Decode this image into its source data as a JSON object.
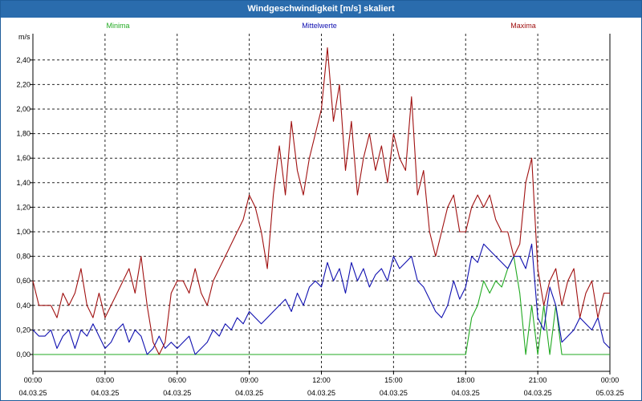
{
  "window": {
    "title": "Windgeschwindigkeit [m/s] skaliert"
  },
  "legend": {
    "min_label": "Minima",
    "mean_label": "Mittelwerte",
    "max_label": "Maxima"
  },
  "colors": {
    "min": "#22aa22",
    "mean": "#1010b0",
    "max": "#a01010",
    "grid": "#000000",
    "title_bar": "#2a6cad"
  },
  "chart_data": {
    "type": "line",
    "title": "Windgeschwindigkeit [m/s] skaliert",
    "ylabel": "m/s",
    "ylim": [
      0,
      2.6
    ],
    "xlim": [
      "04.03.25 00:00",
      "05.03.25 00:00"
    ],
    "grid": true,
    "legend_position": "top",
    "y_ticks": [
      "0,00",
      "0,20",
      "0,40",
      "0,60",
      "0,80",
      "1,00",
      "1,20",
      "1,40",
      "1,60",
      "1,80",
      "2,00",
      "2,20",
      "2,40"
    ],
    "x_ticks": [
      {
        "time": "00:00",
        "date": "04.03.25"
      },
      {
        "time": "03:00",
        "date": "04.03.25"
      },
      {
        "time": "06:00",
        "date": "04.03.25"
      },
      {
        "time": "09:00",
        "date": "04.03.25"
      },
      {
        "time": "12:00",
        "date": "04.03.25"
      },
      {
        "time": "15:00",
        "date": "04.03.25"
      },
      {
        "time": "18:00",
        "date": "04.03.25"
      },
      {
        "time": "21:00",
        "date": "04.03.25"
      },
      {
        "time": "00:00",
        "date": "05.03.25"
      }
    ],
    "series": [
      {
        "name": "Maxima",
        "x_hours": [
          0,
          0.25,
          0.5,
          0.75,
          1,
          1.25,
          1.5,
          1.75,
          2,
          2.25,
          2.5,
          2.75,
          3,
          3.25,
          3.5,
          3.75,
          4,
          4.25,
          4.5,
          4.75,
          5,
          5.25,
          5.5,
          5.75,
          6,
          6.25,
          6.5,
          6.75,
          7,
          7.25,
          7.5,
          7.75,
          8,
          8.25,
          8.5,
          8.75,
          9,
          9.25,
          9.5,
          9.75,
          10,
          10.25,
          10.5,
          10.75,
          11,
          11.25,
          11.5,
          11.75,
          12,
          12.25,
          12.5,
          12.75,
          13,
          13.25,
          13.5,
          13.75,
          14,
          14.25,
          14.5,
          14.75,
          15,
          15.25,
          15.5,
          15.75,
          16,
          16.25,
          16.5,
          16.75,
          17,
          17.25,
          17.5,
          17.75,
          18,
          18.25,
          18.5,
          18.75,
          19,
          19.25,
          19.5,
          19.75,
          20,
          20.25,
          20.5,
          20.75,
          21,
          21.25,
          21.5,
          21.75,
          22,
          22.25,
          22.5,
          22.75,
          23,
          23.25,
          23.5,
          23.75,
          24
        ],
        "values": [
          0.6,
          0.4,
          0.4,
          0.4,
          0.3,
          0.5,
          0.4,
          0.5,
          0.7,
          0.4,
          0.3,
          0.5,
          0.3,
          0.4,
          0.5,
          0.6,
          0.7,
          0.5,
          0.8,
          0.4,
          0.1,
          0.0,
          0.1,
          0.5,
          0.6,
          0.6,
          0.5,
          0.7,
          0.5,
          0.4,
          0.6,
          0.7,
          0.8,
          0.9,
          1.0,
          1.1,
          1.3,
          1.2,
          1.0,
          0.7,
          1.3,
          1.7,
          1.3,
          1.9,
          1.5,
          1.3,
          1.6,
          1.8,
          2.0,
          2.5,
          1.9,
          2.2,
          1.5,
          1.9,
          1.3,
          1.6,
          1.8,
          1.5,
          1.7,
          1.4,
          1.8,
          1.6,
          1.5,
          2.1,
          1.3,
          1.5,
          1.0,
          0.8,
          1.0,
          1.2,
          1.3,
          1.0,
          1.0,
          1.2,
          1.3,
          1.2,
          1.3,
          1.1,
          1.0,
          1.0,
          0.8,
          0.9,
          1.4,
          1.6,
          0.7,
          0.4,
          0.6,
          0.7,
          0.4,
          0.6,
          0.7,
          0.3,
          0.5,
          0.6,
          0.3,
          0.5,
          0.5
        ]
      },
      {
        "name": "Mittelwerte",
        "x_hours": [
          0,
          0.25,
          0.5,
          0.75,
          1,
          1.25,
          1.5,
          1.75,
          2,
          2.25,
          2.5,
          2.75,
          3,
          3.25,
          3.5,
          3.75,
          4,
          4.25,
          4.5,
          4.75,
          5,
          5.25,
          5.5,
          5.75,
          6,
          6.25,
          6.5,
          6.75,
          7,
          7.25,
          7.5,
          7.75,
          8,
          8.25,
          8.5,
          8.75,
          9,
          9.25,
          9.5,
          9.75,
          10,
          10.25,
          10.5,
          10.75,
          11,
          11.25,
          11.5,
          11.75,
          12,
          12.25,
          12.5,
          12.75,
          13,
          13.25,
          13.5,
          13.75,
          14,
          14.25,
          14.5,
          14.75,
          15,
          15.25,
          15.5,
          15.75,
          16,
          16.25,
          16.5,
          16.75,
          17,
          17.25,
          17.5,
          17.75,
          18,
          18.25,
          18.5,
          18.75,
          19,
          19.25,
          19.5,
          19.75,
          20,
          20.25,
          20.5,
          20.75,
          21,
          21.25,
          21.5,
          21.75,
          22,
          22.25,
          22.5,
          22.75,
          23,
          23.25,
          23.5,
          23.75,
          24
        ],
        "values": [
          0.2,
          0.15,
          0.15,
          0.2,
          0.05,
          0.15,
          0.2,
          0.05,
          0.2,
          0.15,
          0.25,
          0.15,
          0.05,
          0.1,
          0.2,
          0.25,
          0.1,
          0.2,
          0.15,
          0.0,
          0.05,
          0.15,
          0.05,
          0.1,
          0.05,
          0.1,
          0.15,
          0.0,
          0.05,
          0.1,
          0.2,
          0.15,
          0.25,
          0.2,
          0.3,
          0.25,
          0.35,
          0.3,
          0.25,
          0.3,
          0.35,
          0.4,
          0.45,
          0.35,
          0.5,
          0.4,
          0.55,
          0.6,
          0.55,
          0.75,
          0.6,
          0.7,
          0.5,
          0.75,
          0.6,
          0.7,
          0.55,
          0.65,
          0.7,
          0.6,
          0.8,
          0.7,
          0.75,
          0.8,
          0.6,
          0.55,
          0.45,
          0.35,
          0.3,
          0.4,
          0.6,
          0.45,
          0.55,
          0.8,
          0.75,
          0.9,
          0.85,
          0.8,
          0.75,
          0.7,
          0.8,
          0.8,
          0.7,
          0.9,
          0.3,
          0.2,
          0.55,
          0.4,
          0.1,
          0.15,
          0.2,
          0.3,
          0.25,
          0.2,
          0.3,
          0.1,
          0.05
        ]
      },
      {
        "name": "Minima",
        "x_hours": [
          0,
          18,
          18.25,
          18.5,
          18.75,
          19,
          19.25,
          19.5,
          19.75,
          20,
          20.25,
          20.5,
          20.75,
          21,
          21.25,
          21.5,
          21.75,
          22,
          22.25,
          24
        ],
        "values": [
          0.0,
          0.0,
          0.3,
          0.4,
          0.6,
          0.5,
          0.6,
          0.55,
          0.7,
          0.8,
          0.5,
          0.0,
          0.4,
          0.0,
          0.4,
          0.0,
          0.4,
          0.0,
          0.0,
          0.0
        ]
      }
    ]
  }
}
